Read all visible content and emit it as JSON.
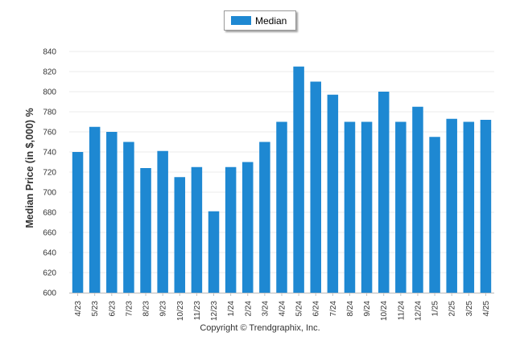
{
  "chart_data": {
    "type": "bar",
    "categories": [
      "4/23",
      "5/23",
      "6/23",
      "7/23",
      "8/23",
      "9/23",
      "10/23",
      "11/23",
      "12/23",
      "1/24",
      "2/24",
      "3/24",
      "4/24",
      "5/24",
      "6/24",
      "7/24",
      "8/24",
      "9/24",
      "10/24",
      "11/24",
      "12/24",
      "1/25",
      "2/25",
      "3/25",
      "4/25"
    ],
    "series": [
      {
        "name": "Median",
        "values": [
          740,
          765,
          760,
          750,
          724,
          741,
          715,
          725,
          681,
          725,
          730,
          750,
          770,
          825,
          810,
          797,
          770,
          770,
          800,
          770,
          785,
          755,
          773,
          770,
          772
        ]
      }
    ],
    "ylabel": "Median Price (in $,000) %",
    "xlabel": "",
    "ylim": [
      600,
      840
    ],
    "yticks": [
      600,
      620,
      640,
      660,
      680,
      700,
      720,
      740,
      760,
      780,
      800,
      820,
      840
    ],
    "grid": true,
    "legend": "top-center"
  },
  "colors": {
    "bar": "#1e88d2",
    "grid": "#ebebeb",
    "axis": "#c0c0c0",
    "text": "#333333"
  },
  "footer": {
    "copyright": "Copyright © Trendgraphix, Inc."
  }
}
